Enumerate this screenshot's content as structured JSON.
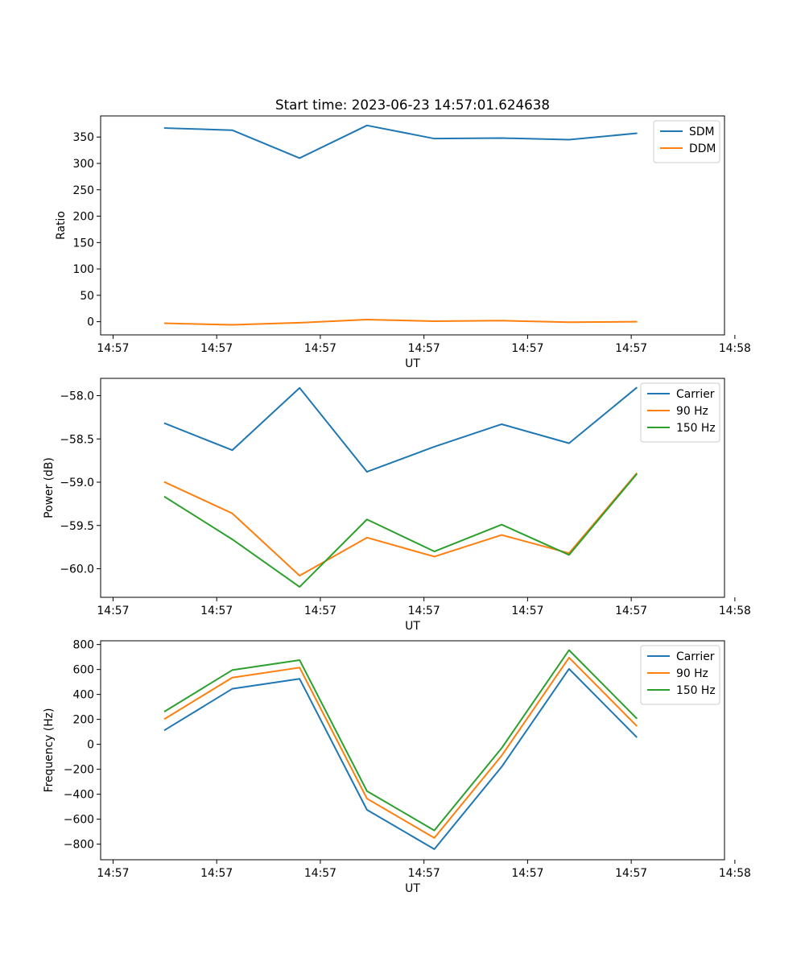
{
  "figure": {
    "title": "Start time: 2023-06-23 14:57:01.624638"
  },
  "chart_data": [
    {
      "type": "line",
      "title": "Start time: 2023-06-23 14:57:01.624638",
      "xlabel": "UT",
      "ylabel": "Ratio",
      "x_ticks": [
        {
          "t": 0,
          "label": "14:57"
        },
        {
          "t": 1,
          "label": "14:57"
        },
        {
          "t": 2,
          "label": "14:57"
        },
        {
          "t": 3,
          "label": "14:57"
        },
        {
          "t": 4,
          "label": "14:57"
        },
        {
          "t": 5,
          "label": "14:57"
        },
        {
          "t": 6,
          "label": "14:57"
        }
      ],
      "xlim": [
        -0.12,
        5.9
      ],
      "ylim": [
        -25,
        390
      ],
      "y_ticks": [
        0,
        50,
        100,
        150,
        200,
        250,
        300,
        350
      ],
      "x": [
        0.5,
        1.15,
        1.8,
        2.45,
        3.1,
        3.75,
        4.4,
        5.05
      ],
      "legend_position": "upper right",
      "series": [
        {
          "name": "SDM",
          "color": "#1f77b4",
          "values": [
            367,
            363,
            310,
            372,
            347,
            348,
            345,
            357
          ]
        },
        {
          "name": "DDM",
          "color": "#ff7f0e",
          "values": [
            -3,
            -6,
            -2,
            4,
            1,
            2,
            -1,
            0
          ]
        }
      ]
    },
    {
      "type": "line",
      "title": "",
      "xlabel": "UT",
      "ylabel": "Power (dB)",
      "x_ticks": [
        {
          "t": 0,
          "label": "14:57"
        },
        {
          "t": 1,
          "label": "14:57"
        },
        {
          "t": 2,
          "label": "14:57"
        },
        {
          "t": 3,
          "label": "14:57"
        },
        {
          "t": 4,
          "label": "14:57"
        },
        {
          "t": 5,
          "label": "14:57"
        },
        {
          "t": 6,
          "label": "14:57"
        }
      ],
      "xlim": [
        -0.12,
        5.9
      ],
      "ylim": [
        -60.33,
        -57.8
      ],
      "y_ticks": [
        -60.0,
        -59.5,
        -59.0,
        -58.5,
        -58.0
      ],
      "y_tick_labels": [
        "−60.0",
        "−59.5",
        "−59.0",
        "−58.5",
        "−58.0"
      ],
      "x": [
        0.5,
        1.15,
        1.8,
        2.45,
        3.1,
        3.75,
        4.4,
        5.05
      ],
      "legend_position": "upper right",
      "series": [
        {
          "name": "Carrier",
          "color": "#1f77b4",
          "values": [
            -58.32,
            -58.63,
            -57.91,
            -58.88,
            -58.59,
            -58.33,
            -58.55,
            -57.91
          ]
        },
        {
          "name": "90 Hz",
          "color": "#ff7f0e",
          "values": [
            -59.0,
            -59.36,
            -60.08,
            -59.64,
            -59.86,
            -59.61,
            -59.82,
            -58.9
          ]
        },
        {
          "name": "150 Hz",
          "color": "#2ca02c",
          "values": [
            -59.17,
            -59.66,
            -60.21,
            -59.43,
            -59.8,
            -59.49,
            -59.84,
            -58.91
          ]
        }
      ]
    },
    {
      "type": "line",
      "title": "",
      "xlabel": "UT",
      "ylabel": "Frequency (Hz)",
      "x_ticks": [
        {
          "t": 0,
          "label": "14:57"
        },
        {
          "t": 1,
          "label": "14:57"
        },
        {
          "t": 2,
          "label": "14:57"
        },
        {
          "t": 3,
          "label": "14:57"
        },
        {
          "t": 4,
          "label": "14:57"
        },
        {
          "t": 5,
          "label": "14:57"
        },
        {
          "t": 6,
          "label": "14:57"
        }
      ],
      "xlim": [
        -0.12,
        5.9
      ],
      "ylim": [
        -925,
        830
      ],
      "y_ticks": [
        -800,
        -600,
        -400,
        -200,
        0,
        200,
        400,
        600,
        800
      ],
      "y_tick_labels": [
        "−800",
        "−600",
        "−400",
        "−200",
        "0",
        "200",
        "400",
        "600",
        "800"
      ],
      "x": [
        0.5,
        1.15,
        1.8,
        2.45,
        3.1,
        3.75,
        4.4,
        5.05
      ],
      "legend_position": "upper right",
      "series": [
        {
          "name": "Carrier",
          "color": "#1f77b4",
          "values": [
            115,
            445,
            525,
            -525,
            -840,
            -180,
            605,
            60
          ]
        },
        {
          "name": "90 Hz",
          "color": "#ff7f0e",
          "values": [
            205,
            535,
            615,
            -435,
            -750,
            -90,
            695,
            150
          ]
        },
        {
          "name": "150 Hz",
          "color": "#2ca02c",
          "values": [
            265,
            595,
            675,
            -375,
            -690,
            -30,
            755,
            210
          ]
        }
      ]
    }
  ]
}
